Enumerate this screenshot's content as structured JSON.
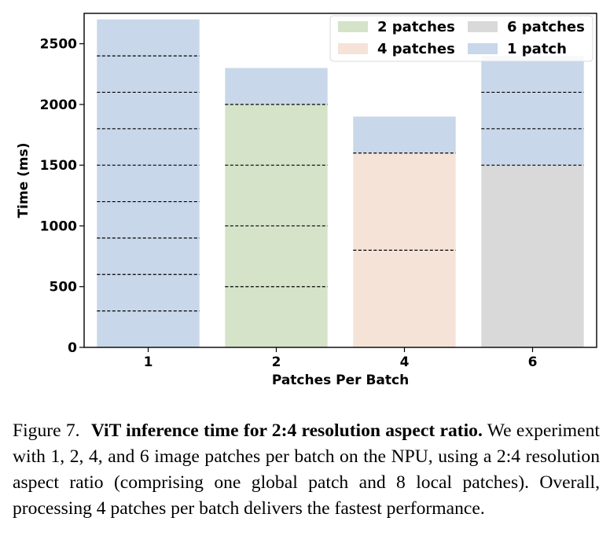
{
  "chart_data": {
    "type": "bar",
    "stacked": true,
    "xlabel": "Patches Per Batch",
    "ylabel": "Time (ms)",
    "ylim": [
      0,
      2750
    ],
    "yticks": [
      0,
      500,
      1000,
      1500,
      2000,
      2500
    ],
    "categories": [
      "1",
      "2",
      "4",
      "6"
    ],
    "bars": [
      {
        "category": "1",
        "total": 2700,
        "base_series": "1 patch",
        "base_value": 2700,
        "dashes": [
          300,
          600,
          900,
          1200,
          1500,
          1800,
          2100,
          2400
        ]
      },
      {
        "category": "2",
        "total": 2300,
        "base_series": "2 patches",
        "base_value": 2000,
        "dashes": [
          500,
          1000,
          1500,
          2000
        ]
      },
      {
        "category": "4",
        "total": 1900,
        "base_series": "4 patches",
        "base_value": 1600,
        "dashes": [
          800,
          1600
        ]
      },
      {
        "category": "6",
        "total": 2400,
        "base_series": "6 patches",
        "base_value": 1500,
        "dashes": [
          1500,
          1800,
          2100
        ]
      }
    ],
    "legend": [
      {
        "name": "2 patches",
        "color": "#d5e3c9"
      },
      {
        "name": "6 patches",
        "color": "#d9d9d9"
      },
      {
        "name": "4 patches",
        "color": "#f5e3d8"
      },
      {
        "name": "1 patch",
        "color": "#c9d7ea"
      }
    ],
    "legend_position": "top-right"
  },
  "caption": {
    "label": "Figure 7.",
    "title": "ViT inference time for 2:4 resolution aspect ratio.",
    "text": "We experiment with 1, 2, 4, and 6 image patches per batch on the NPU, using a 2:4 resolution aspect ratio (comprising one global patch and 8 local patches). Overall, processing 4 patches per batch delivers the fastest performance."
  }
}
